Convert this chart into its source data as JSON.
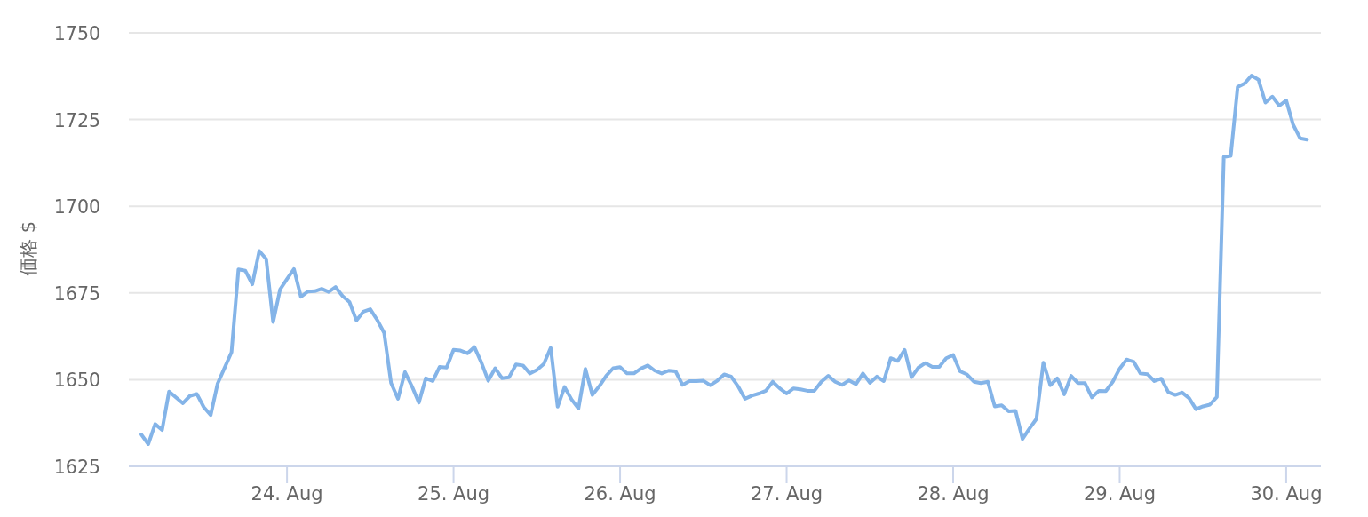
{
  "chart_data": {
    "type": "line",
    "ylabel": "価格 $",
    "x": [
      "--08-23T03:00",
      "--08-23T04:00",
      "--08-23T05:00",
      "--08-23T06:00",
      "--08-23T07:00",
      "--08-23T09:00",
      "--08-23T10:00",
      "--08-23T11:00",
      "--08-23T12:00",
      "--08-23T13:00",
      "--08-23T14:00",
      "--08-23T15:00",
      "--08-23T16:00",
      "--08-23T17:00",
      "--08-23T18:00",
      "--08-23T19:00",
      "--08-23T20:00",
      "--08-23T21:00",
      "--08-23T22:00",
      "--08-23T23:00",
      "--08-24T00:00",
      "--08-24T01:00",
      "--08-24T02:00",
      "--08-24T03:00",
      "--08-24T04:00",
      "--08-24T05:00",
      "--08-24T06:00",
      "--08-24T07:00",
      "--08-24T08:00",
      "--08-24T09:00",
      "--08-24T10:00",
      "--08-24T11:00",
      "--08-24T12:00",
      "--08-24T13:00",
      "--08-24T14:00",
      "--08-24T15:00",
      "--08-24T16:00",
      "--08-24T17:00",
      "--08-24T18:00",
      "--08-24T19:00",
      "--08-24T20:00",
      "--08-24T21:00",
      "--08-24T22:00",
      "--08-24T23:00",
      "--08-25T00:00",
      "--08-25T01:00",
      "--08-25T02:00",
      "--08-25T03:00",
      "--08-25T04:00",
      "--08-25T05:00",
      "--08-25T06:00",
      "--08-25T07:00",
      "--08-25T08:00",
      "--08-25T09:00",
      "--08-25T10:00",
      "--08-25T11:00",
      "--08-25T12:00",
      "--08-25T13:00",
      "--08-25T14:00",
      "--08-25T15:00",
      "--08-25T16:00",
      "--08-25T17:00",
      "--08-25T18:00",
      "--08-25T19:00",
      "--08-25T20:00",
      "--08-25T21:00",
      "--08-25T22:00",
      "--08-25T23:00",
      "--08-26T00:00",
      "--08-26T01:00",
      "--08-26T02:00",
      "--08-26T03:00",
      "--08-26T04:00",
      "--08-26T05:00",
      "--08-26T06:00",
      "--08-26T07:00",
      "--08-26T08:00",
      "--08-26T09:00",
      "--08-26T10:00",
      "--08-26T11:00",
      "--08-26T12:00",
      "--08-26T13:00",
      "--08-26T14:00",
      "--08-26T15:00",
      "--08-26T16:00",
      "--08-26T17:00",
      "--08-26T18:00",
      "--08-26T19:00",
      "--08-26T20:00",
      "--08-26T21:00",
      "--08-26T22:00",
      "--08-26T23:00",
      "--08-27T00:00",
      "--08-27T01:00",
      "--08-27T02:00",
      "--08-27T03:00",
      "--08-27T04:00",
      "--08-27T05:00",
      "--08-27T06:00",
      "--08-27T07:00",
      "--08-27T08:00",
      "--08-27T09:00",
      "--08-27T10:00",
      "--08-27T11:00",
      "--08-27T12:00",
      "--08-27T13:00",
      "--08-27T14:00",
      "--08-27T15:00",
      "--08-27T16:00",
      "--08-27T17:00",
      "--08-27T18:00",
      "--08-27T19:00",
      "--08-27T20:00",
      "--08-27T21:00",
      "--08-27T22:00",
      "--08-27T23:00",
      "--08-28T00:00",
      "--08-28T01:00",
      "--08-28T02:00",
      "--08-28T03:00",
      "--08-28T04:00",
      "--08-28T05:00",
      "--08-28T06:00",
      "--08-28T07:00",
      "--08-28T08:00",
      "--08-28T09:00",
      "--08-28T10:00",
      "--08-28T11:00",
      "--08-28T12:00",
      "--08-28T13:00",
      "--08-28T14:00",
      "--08-28T15:00",
      "--08-28T16:00",
      "--08-28T17:00",
      "--08-28T18:00",
      "--08-28T19:00",
      "--08-28T20:00",
      "--08-28T21:00",
      "--08-28T22:00",
      "--08-28T23:00",
      "--08-29T00:00",
      "--08-29T01:00",
      "--08-29T02:00",
      "--08-29T03:00",
      "--08-29T04:00",
      "--08-29T05:00",
      "--08-29T06:00",
      "--08-29T07:00",
      "--08-29T08:00",
      "--08-29T09:00",
      "--08-29T10:00",
      "--08-29T11:00",
      "--08-29T12:00",
      "--08-29T13:00",
      "--08-29T14:00",
      "--08-29T15:00",
      "--08-29T16:00",
      "--08-29T17:00",
      "--08-29T18:00",
      "--08-29T19:00",
      "--08-29T20:00",
      "--08-29T21:00",
      "--08-29T22:00",
      "--08-29T23:00",
      "--08-30T00:00",
      "--08-30T01:00",
      "--08-30T02:00",
      "--08-30T03:00"
    ],
    "series": [
      {
        "color": "#84b4e8",
        "values": [
          1634.2,
          1631.4,
          1637.2,
          1635.5,
          1646.6,
          1643.2,
          1645.3,
          1645.9,
          1642.1,
          1639.8,
          1648.9,
          1653.4,
          1657.9,
          1681.8,
          1681.4,
          1677.5,
          1687.1,
          1684.8,
          1666.6,
          1676.0,
          1679.0,
          1681.9,
          1673.9,
          1675.4,
          1675.5,
          1676.2,
          1675.3,
          1676.7,
          1674.1,
          1672.4,
          1667.1,
          1669.6,
          1670.3,
          1667.2,
          1663.5,
          1649.0,
          1644.5,
          1652.2,
          1648.1,
          1643.4,
          1650.4,
          1649.6,
          1653.7,
          1653.5,
          1658.6,
          1658.4,
          1657.6,
          1659.4,
          1655.0,
          1649.7,
          1653.3,
          1650.4,
          1650.7,
          1654.4,
          1654.1,
          1651.8,
          1652.8,
          1654.5,
          1659.2,
          1642.2,
          1647.9,
          1644.3,
          1641.7,
          1653.1,
          1645.6,
          1648.1,
          1651.1,
          1653.3,
          1653.6,
          1651.8,
          1651.8,
          1653.2,
          1654.1,
          1652.6,
          1651.8,
          1652.6,
          1652.4,
          1648.5,
          1649.6,
          1649.6,
          1649.7,
          1648.4,
          1649.7,
          1651.5,
          1650.9,
          1648.1,
          1644.5,
          1645.4,
          1646.0,
          1646.8,
          1649.4,
          1647.5,
          1646.0,
          1647.5,
          1647.2,
          1646.8,
          1646.8,
          1649.4,
          1651.1,
          1649.4,
          1648.5,
          1649.8,
          1648.7,
          1651.8,
          1649.1,
          1650.9,
          1649.6,
          1656.2,
          1655.4,
          1658.6,
          1650.7,
          1653.5,
          1654.8,
          1653.7,
          1653.7,
          1656.2,
          1657.1,
          1652.4,
          1651.5,
          1649.4,
          1649.0,
          1649.4,
          1642.3,
          1642.6,
          1640.9,
          1641.0,
          1632.9,
          1635.9,
          1638.7,
          1654.9,
          1648.4,
          1650.4,
          1645.8,
          1651.1,
          1649.0,
          1649.0,
          1644.9,
          1646.8,
          1646.7,
          1649.4,
          1653.2,
          1655.8,
          1655.2,
          1651.8,
          1651.6,
          1649.6,
          1650.3,
          1646.4,
          1645.6,
          1646.3,
          1644.7,
          1641.5,
          1642.3,
          1642.8,
          1645.0,
          1714.2,
          1714.5,
          1734.4,
          1735.4,
          1737.7,
          1736.5,
          1729.9,
          1731.6,
          1729.0,
          1730.5,
          1723.5,
          1719.6,
          1719.2
        ]
      }
    ],
    "xlim": [
      "--08-23T01:12",
      "--08-30T05:00"
    ],
    "xticks": [
      {
        "value": "--08-24",
        "label": "24. Aug"
      },
      {
        "value": "--08-25",
        "label": "25. Aug"
      },
      {
        "value": "--08-26",
        "label": "26. Aug"
      },
      {
        "value": "--08-27",
        "label": "27. Aug"
      },
      {
        "value": "--08-28",
        "label": "28. Aug"
      },
      {
        "value": "--08-29",
        "label": "29. Aug"
      },
      {
        "value": "--08-30",
        "label": "30. Aug"
      }
    ],
    "ylim": [
      1625,
      1750
    ],
    "yticks": [
      1625,
      1650,
      1675,
      1700,
      1725,
      1750
    ],
    "grid": "y"
  }
}
